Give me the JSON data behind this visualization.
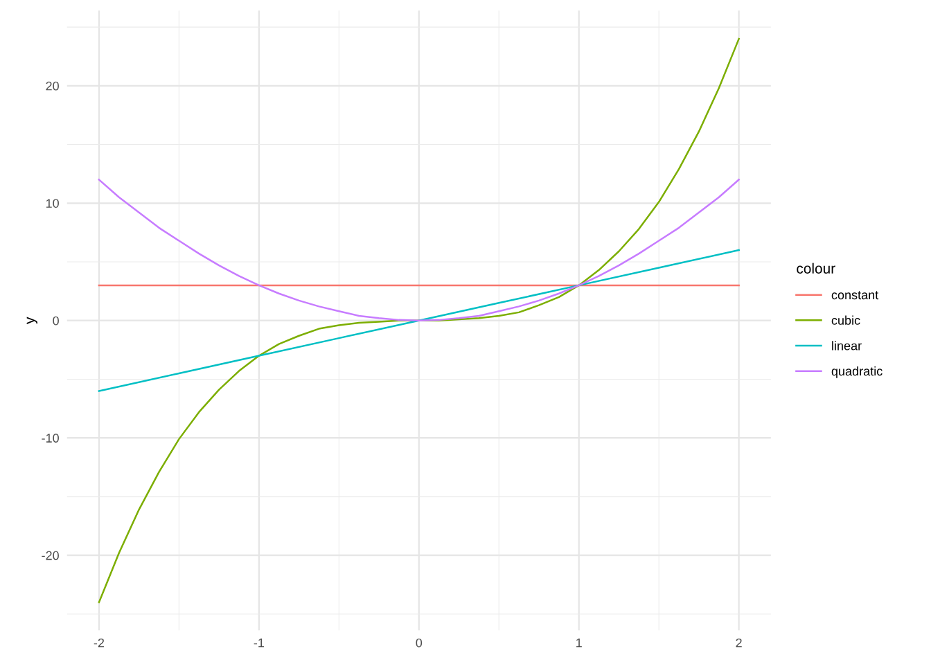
{
  "chart_data": {
    "type": "line",
    "ylabel": "y",
    "legend_title": "colour",
    "legend": "right",
    "grid": true,
    "line_style": "solid",
    "x": [
      -2,
      -1.875,
      -1.75,
      -1.625,
      -1.5,
      -1.375,
      -1.25,
      -1.125,
      -1,
      -0.875,
      -0.75,
      -0.625,
      -0.5,
      -0.375,
      -0.25,
      -0.125,
      0,
      0.125,
      0.25,
      0.375,
      0.5,
      0.625,
      0.75,
      0.875,
      1,
      1.125,
      1.25,
      1.375,
      1.5,
      1.625,
      1.75,
      1.875,
      2
    ],
    "series": [
      {
        "name": "constant",
        "color": "#f8766d",
        "values": [
          3,
          3,
          3,
          3,
          3,
          3,
          3,
          3,
          3,
          3,
          3,
          3,
          3,
          3,
          3,
          3,
          3,
          3,
          3,
          3,
          3,
          3,
          3,
          3,
          3,
          3,
          3,
          3,
          3,
          3,
          3,
          3,
          3
        ]
      },
      {
        "name": "cubic",
        "color": "#7cae00",
        "values": [
          -24,
          -19.8,
          -16.1,
          -12.9,
          -10.1,
          -7.8,
          -5.9,
          -4.3,
          -3,
          -2.0,
          -1.3,
          -0.7,
          -0.4,
          -0.2,
          -0.1,
          0,
          0,
          0,
          0.1,
          0.2,
          0.4,
          0.7,
          1.3,
          2.0,
          3,
          4.3,
          5.9,
          7.8,
          10.1,
          12.9,
          16.1,
          19.8,
          24
        ]
      },
      {
        "name": "linear",
        "color": "#00bfc4",
        "x": [
          -2,
          -1.5,
          -1,
          -0.5,
          0,
          0.5,
          1,
          1.5,
          2
        ],
        "values": [
          -6,
          -4.5,
          -3,
          -1.5,
          0,
          1.5,
          3,
          4.5,
          6
        ]
      },
      {
        "name": "quadratic",
        "color": "#c77cff",
        "values": [
          12,
          10.5,
          9.2,
          7.9,
          6.8,
          5.7,
          4.7,
          3.8,
          3,
          2.3,
          1.7,
          1.2,
          0.8,
          0.4,
          0.2,
          0.05,
          0,
          0.05,
          0.2,
          0.4,
          0.8,
          1.2,
          1.7,
          2.3,
          3,
          3.8,
          4.7,
          5.7,
          6.8,
          7.9,
          9.2,
          10.5,
          12
        ]
      }
    ],
    "xlim": [
      -2.2,
      2.2
    ],
    "xticks": [
      -2,
      {
        "value": -1.5,
        "label": null
      },
      -1,
      {
        "value": -0.5,
        "label": null
      },
      0,
      {
        "value": 0.5,
        "label": null
      },
      1,
      {
        "value": 1.5,
        "label": null
      },
      2
    ],
    "ylim": [
      -26.4,
      26.4
    ],
    "yticks": [
      {
        "value": -25,
        "label": null
      },
      -20,
      {
        "value": -15,
        "label": null
      },
      -10,
      {
        "value": -5,
        "label": null
      },
      0,
      {
        "value": 5,
        "label": null
      },
      10,
      {
        "value": 15,
        "label": null
      },
      20,
      {
        "value": 25,
        "label": null
      }
    ]
  }
}
